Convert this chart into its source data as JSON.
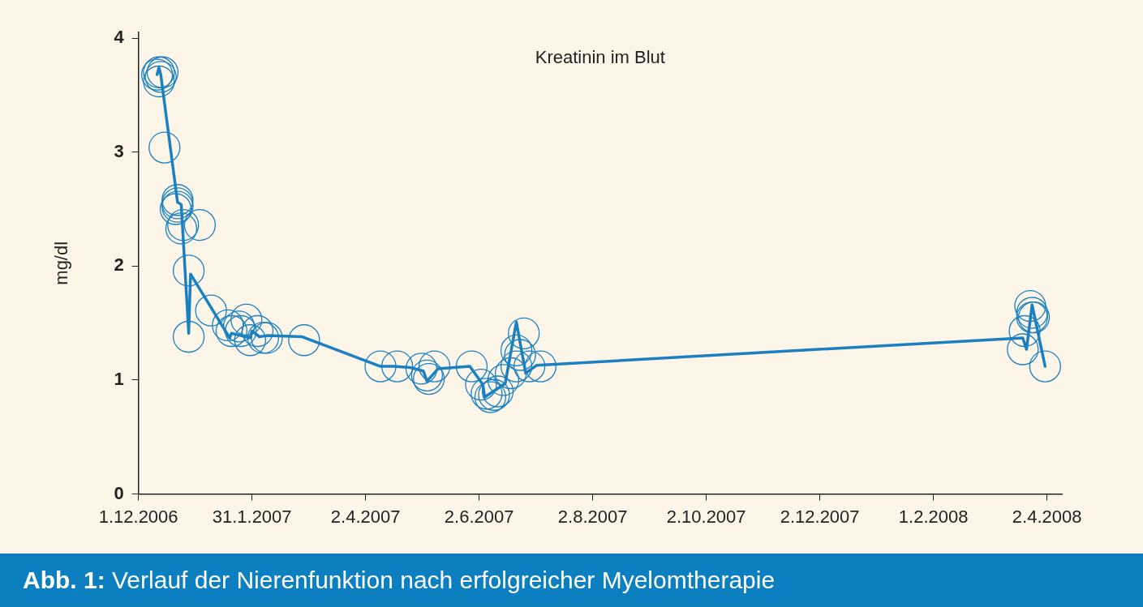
{
  "chart_data": {
    "type": "scatter",
    "title": "Abb. 1: Verlauf der Nierenfunktion nach erfolgreicher Myelomtherapie",
    "ylabel": "mg/dl",
    "annotations": [
      "Kreatinin im Blut"
    ],
    "xlim": [
      "2006-12-01",
      "2008-04-10"
    ],
    "ylim": [
      0,
      4.05
    ],
    "xticks": [
      {
        "value": "2006-12-01",
        "label": "1.12.2006"
      },
      {
        "value": "2007-01-31",
        "label": "31.1.2007"
      },
      {
        "value": "2007-04-02",
        "label": "2.4.2007"
      },
      {
        "value": "2007-06-02",
        "label": "2.6.2007"
      },
      {
        "value": "2007-08-02",
        "label": "2.8.2007"
      },
      {
        "value": "2007-10-02",
        "label": "2.10.2007"
      },
      {
        "value": "2007-12-02",
        "label": "2.12.2007"
      },
      {
        "value": "2008-02-01",
        "label": "1.2.2008"
      },
      {
        "value": "2008-04-02",
        "label": "2.4.2008"
      }
    ],
    "yticks": [
      0,
      1,
      2,
      3,
      4
    ],
    "grid": false,
    "legend": false,
    "series": [
      {
        "marker": "circle",
        "color": "#1a80c2",
        "x": [
          "2006-12-11",
          "2006-12-12",
          "2006-12-12",
          "2006-12-13",
          "2006-12-14",
          "2006-12-15",
          "2006-12-21",
          "2006-12-22",
          "2006-12-22",
          "2006-12-22",
          "2006-12-24",
          "2006-12-25",
          "2007-01-03",
          "2006-12-28",
          "2006-12-28",
          "2007-01-09",
          "2007-01-18",
          "2007-01-20",
          "2007-01-24",
          "2007-01-25",
          "2007-01-28",
          "2007-01-30",
          "2007-02-03",
          "2007-02-06",
          "2007-02-08",
          "2007-02-28",
          "2007-04-10",
          "2007-04-19",
          "2007-05-02",
          "2007-05-05",
          "2007-05-06",
          "2007-05-09",
          "2007-05-29",
          "2007-06-03",
          "2007-06-06",
          "2007-06-08",
          "2007-06-10",
          "2007-06-12",
          "2007-06-15",
          "2007-06-19",
          "2007-06-22",
          "2007-06-24",
          "2007-06-22",
          "2007-06-26",
          "2007-06-29",
          "2007-07-05",
          "2008-03-20",
          "2008-03-21",
          "2008-03-24",
          "2008-03-25",
          "2008-03-26",
          "2008-03-25",
          "2008-04-01"
        ],
        "values": [
          3.68,
          3.7,
          3.62,
          3.66,
          3.7,
          3.04,
          2.5,
          2.58,
          2.55,
          2.52,
          2.33,
          2.36,
          2.36,
          1.96,
          1.38,
          1.61,
          1.48,
          1.43,
          1.47,
          1.43,
          1.53,
          1.35,
          1.43,
          1.37,
          1.37,
          1.35,
          1.12,
          1.12,
          1.1,
          1.04,
          1.01,
          1.12,
          1.12,
          0.96,
          0.88,
          0.85,
          0.87,
          0.9,
          1.0,
          1.06,
          1.12,
          1.22,
          1.26,
          1.41,
          1.12,
          1.12,
          1.27,
          1.43,
          1.65,
          1.59,
          1.55,
          1.55,
          1.12
        ]
      },
      {
        "type": "line",
        "marker": "none",
        "color": "#1a80c2",
        "x": [
          "2006-12-11",
          "2006-12-12",
          "2006-12-13",
          "2006-12-22",
          "2006-12-24",
          "2006-12-28",
          "2006-12-29",
          "2007-01-19",
          "2007-01-20",
          "2007-01-30",
          "2007-01-31",
          "2007-02-04",
          "2007-02-08",
          "2007-02-27",
          "2007-04-10",
          "2007-04-17",
          "2007-04-26",
          "2007-05-03",
          "2007-05-05",
          "2007-05-11",
          "2007-05-28",
          "2007-06-04",
          "2007-06-05",
          "2007-06-16",
          "2007-06-22",
          "2007-06-27",
          "2007-07-03",
          "2008-03-20",
          "2008-03-22",
          "2008-03-25",
          "2008-04-01"
        ],
        "values": [
          3.68,
          3.74,
          3.68,
          2.56,
          2.54,
          1.41,
          1.93,
          1.37,
          1.41,
          1.37,
          1.43,
          1.38,
          1.39,
          1.38,
          1.12,
          1.12,
          1.11,
          1.08,
          0.99,
          1.1,
          1.12,
          0.96,
          0.85,
          0.97,
          1.51,
          1.06,
          1.13,
          1.37,
          1.27,
          1.66,
          1.12
        ]
      }
    ]
  }
}
